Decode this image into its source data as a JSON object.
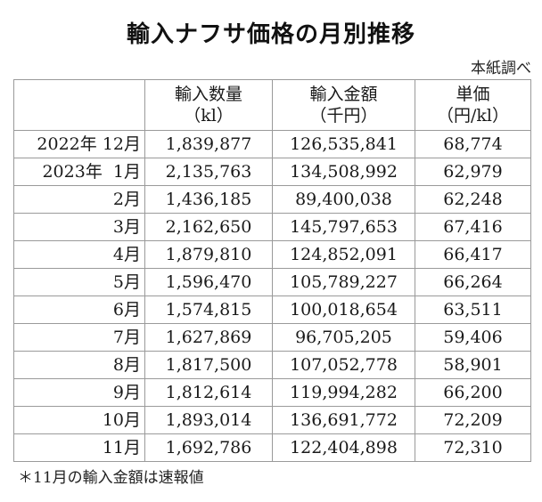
{
  "title": "輸入ナフサ価格の月別推移",
  "source": "本紙調べ",
  "table": {
    "headers": [
      {
        "label": "",
        "unit": ""
      },
      {
        "label": "輸入数量",
        "unit": "（kl）"
      },
      {
        "label": "輸入金額",
        "unit": "（千円）"
      },
      {
        "label": "単価",
        "unit": "（円/kl）"
      }
    ],
    "rows": [
      {
        "period": "2022年 12月",
        "quantity": "1,839,877",
        "amount": "126,535,841",
        "unit_price": "68,774"
      },
      {
        "period": "2023年  1月",
        "quantity": "2,135,763",
        "amount": "134,508,992",
        "unit_price": "62,979"
      },
      {
        "period": "2月",
        "quantity": "1,436,185",
        "amount": "89,400,038",
        "unit_price": "62,248"
      },
      {
        "period": "3月",
        "quantity": "2,162,650",
        "amount": "145,797,653",
        "unit_price": "67,416"
      },
      {
        "period": "4月",
        "quantity": "1,879,810",
        "amount": "124,852,091",
        "unit_price": "66,417"
      },
      {
        "period": "5月",
        "quantity": "1,596,470",
        "amount": "105,789,227",
        "unit_price": "66,264"
      },
      {
        "period": "6月",
        "quantity": "1,574,815",
        "amount": "100,018,654",
        "unit_price": "63,511"
      },
      {
        "period": "7月",
        "quantity": "1,627,869",
        "amount": "96,705,205",
        "unit_price": "59,406"
      },
      {
        "period": "8月",
        "quantity": "1,817,500",
        "amount": "107,052,778",
        "unit_price": "58,901"
      },
      {
        "period": "9月",
        "quantity": "1,812,614",
        "amount": "119,994,282",
        "unit_price": "66,200"
      },
      {
        "period": "10月",
        "quantity": "1,893,014",
        "amount": "136,691,772",
        "unit_price": "72,209"
      },
      {
        "period": "11月",
        "quantity": "1,692,786",
        "amount": "122,404,898",
        "unit_price": "72,310"
      }
    ]
  },
  "footnote": "＊11月の輸入金額は速報値"
}
